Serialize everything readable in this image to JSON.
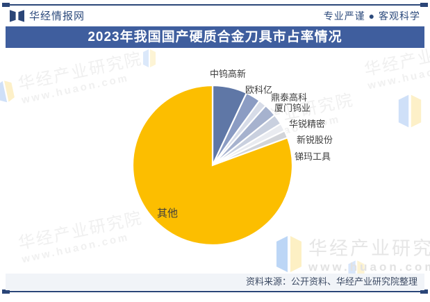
{
  "header": {
    "brand": "华经情报网",
    "slogan": "专业严谨 ● 客观科学"
  },
  "title": "2023年我国国产硬质合金刀具市占率情况",
  "footer": {
    "source": "资料来源：公开资料、华经产业研究院整理"
  },
  "watermark": {
    "name": "华经产业研究院",
    "url": "www.huaon.com"
  },
  "colors": {
    "navy_line": "#2b4678",
    "title_bar_bg": "#3f5e9e",
    "title_text": "#ffffff",
    "footer_bg": "#f1f4f8",
    "label_text": "#3d3d3d",
    "others_yellow": "#fcbe00"
  },
  "chart_data": {
    "type": "pie",
    "title": "2023年我国国产硬质合金刀具市占率情况",
    "start_angle_deg": 0,
    "direction": "clockwise",
    "legend": "none",
    "data_labels": "category-names-only",
    "slices": [
      {
        "name": "中钨高新",
        "value": 7.0,
        "color": "#5f77a6"
      },
      {
        "name": "欧科亿",
        "value": 3.0,
        "color": "#8b9cc3"
      },
      {
        "name": "鼎泰高科",
        "value": 1.6,
        "color": "#d7dce8"
      },
      {
        "name": "厦门钨业",
        "value": 2.6,
        "color": "#a6b2ce"
      },
      {
        "name": "华锐精密",
        "value": 2.1,
        "color": "#c9d0df"
      },
      {
        "name": "新锐股份",
        "value": 1.6,
        "color": "#e9ebf0"
      },
      {
        "name": "锑玛工具",
        "value": 1.5,
        "color": "#d2d4d9"
      },
      {
        "name": "其他",
        "value": 80.6,
        "color": "#fcbe00"
      }
    ]
  }
}
